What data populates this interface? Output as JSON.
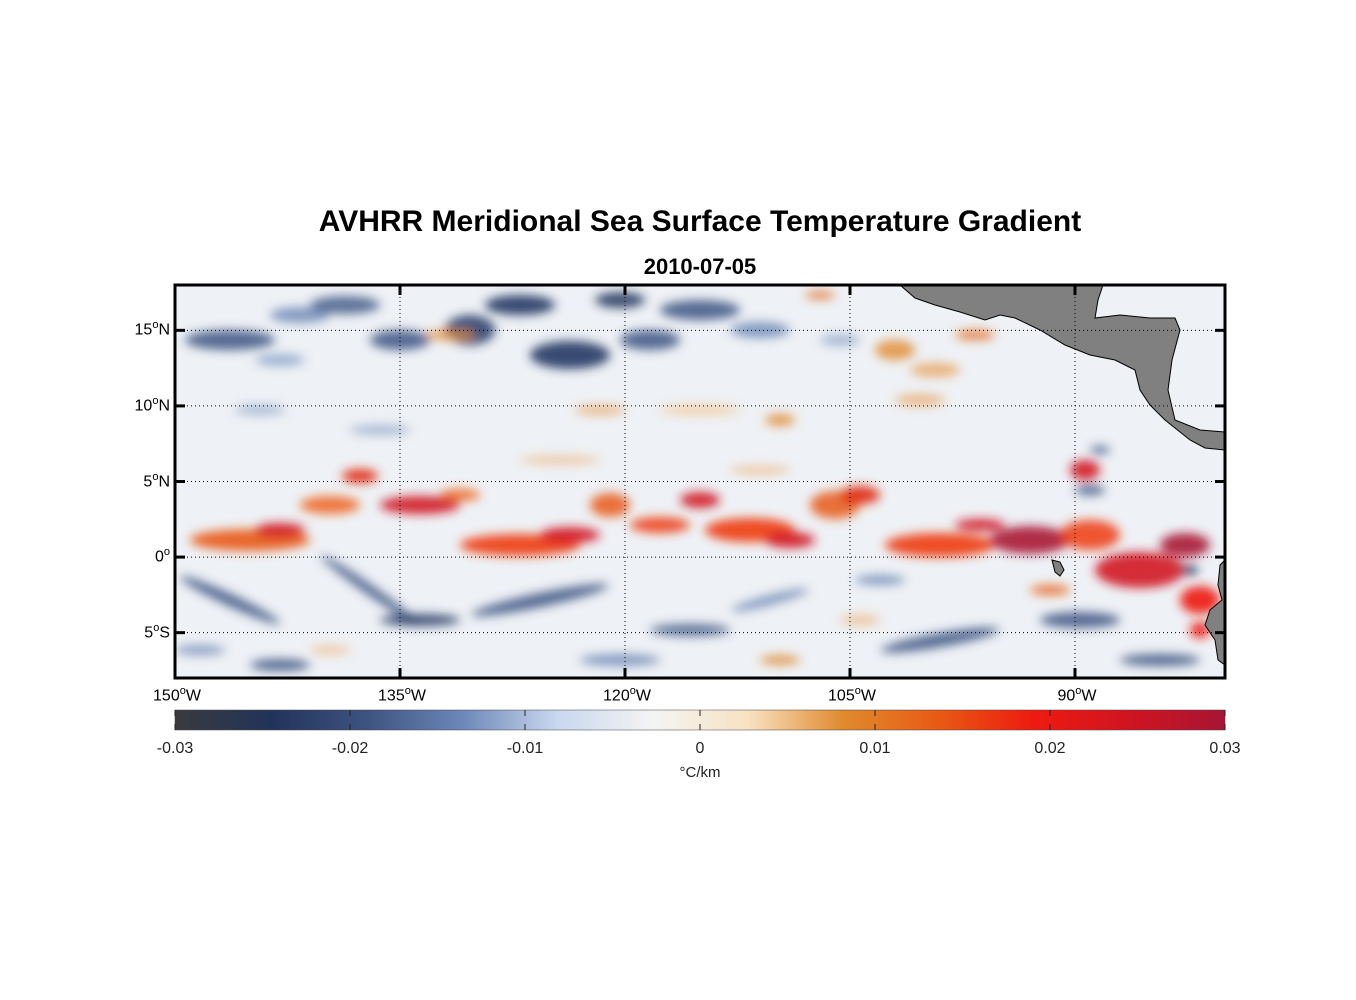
{
  "figure": {
    "title": "AVHRR Meridional Sea Surface Temperature Gradient",
    "date": "2010-07-05"
  },
  "map": {
    "lon_range": [
      -150,
      -80
    ],
    "lat_range": [
      -8,
      18
    ],
    "lat_ticks": [
      {
        "value": 15,
        "num": "15",
        "hemi": "N"
      },
      {
        "value": 10,
        "num": "10",
        "hemi": "N"
      },
      {
        "value": 5,
        "num": "5",
        "hemi": "N"
      },
      {
        "value": 0,
        "num": "0",
        "hemi": ""
      },
      {
        "value": -5,
        "num": "5",
        "hemi": "S"
      }
    ],
    "lon_ticks": [
      {
        "value": -150,
        "num": "150",
        "hemi": "W"
      },
      {
        "value": -135,
        "num": "135",
        "hemi": "W"
      },
      {
        "value": -120,
        "num": "120",
        "hemi": "W"
      },
      {
        "value": -105,
        "num": "105",
        "hemi": "W"
      },
      {
        "value": -90,
        "num": "90",
        "hemi": "W"
      }
    ],
    "grid": "dotted",
    "land_color": "#808080"
  },
  "colorbar": {
    "ticks": [
      "-0.03",
      "-0.02",
      "-0.01",
      "0",
      "0.01",
      "0.02",
      "0.03"
    ],
    "unit": "°C/km",
    "range": [
      -0.03,
      0.03
    ],
    "stops": [
      "#3a3a3e",
      "#22335a",
      "#3d5380",
      "#6b86b8",
      "#c8d8ee",
      "#f4f4f4",
      "#f8e2c2",
      "#e08a2e",
      "#e85a14",
      "#ee1a10",
      "#d01422",
      "#a81434"
    ]
  }
}
